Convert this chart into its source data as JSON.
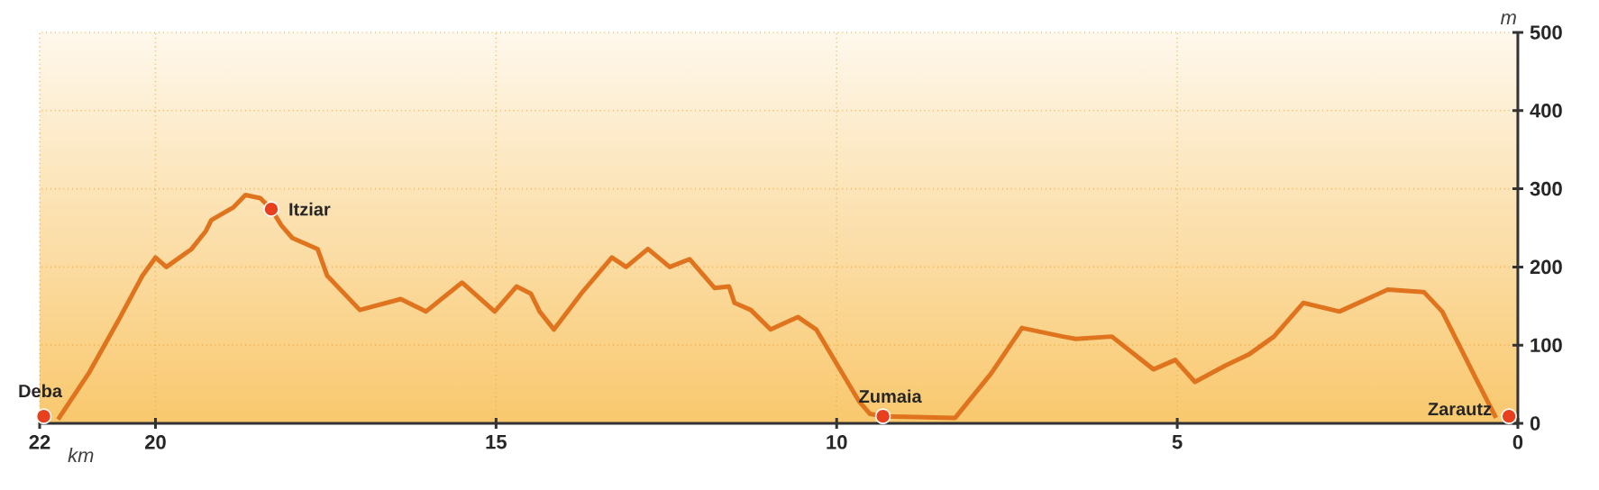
{
  "chart_data": {
    "type": "line",
    "xlabel": "km",
    "ylabel": "m",
    "x": [
      21.43,
      20.98,
      20.53,
      20.19,
      20.0,
      19.84,
      19.47,
      19.26,
      19.18,
      18.86,
      18.68,
      18.46,
      18.3,
      18.15,
      17.99,
      17.62,
      17.48,
      17.0,
      16.4,
      16.03,
      15.5,
      15.02,
      14.7,
      14.49,
      14.36,
      14.15,
      13.75,
      13.3,
      13.09,
      12.77,
      12.45,
      12.16,
      11.79,
      11.58,
      11.5,
      11.26,
      10.97,
      10.57,
      10.3,
      9.67,
      9.51,
      9.32,
      8.26,
      7.73,
      7.28,
      6.68,
      6.49,
      5.96,
      5.35,
      5.03,
      4.74,
      4.29,
      3.95,
      3.58,
      3.15,
      2.62,
      1.91,
      1.38,
      1.11,
      0.58,
      0.32
    ],
    "series": [
      {
        "type": "line",
        "color": "#e0741e",
        "values": [
          5,
          64,
          134,
          189,
          212,
          200,
          223,
          246,
          260,
          276,
          292,
          288,
          274,
          253,
          237,
          223,
          189,
          145,
          159,
          143,
          180,
          143,
          175,
          166,
          143,
          120,
          166,
          212,
          200,
          223,
          200,
          210,
          173,
          175,
          154,
          145,
          120,
          136,
          120,
          28,
          12,
          9,
          7,
          64,
          122,
          111,
          108,
          111,
          69,
          81,
          53,
          74,
          88,
          111,
          154,
          143,
          171,
          168,
          143,
          51,
          7
        ]
      },
      {
        "type": "scatter",
        "color": "#e8401c",
        "marker": "circle",
        "x": [
          21.64,
          18.3,
          9.32,
          0.13
        ],
        "values": [
          9,
          274,
          9,
          9
        ]
      }
    ],
    "annotations": [
      {
        "text": "Deba",
        "x": 21.64,
        "y": 9
      },
      {
        "text": "Itziar",
        "x": 18.3,
        "y": 274
      },
      {
        "text": "Zumaia",
        "x": 9.32,
        "y": 9
      },
      {
        "text": "Zarautz",
        "x": 0.13,
        "y": 9
      }
    ],
    "xlim": [
      21.7,
      0
    ],
    "xticks": [
      {
        "value": 21.7,
        "label": "22"
      },
      20,
      15,
      10,
      5,
      0
    ],
    "ylim": [
      0,
      500
    ],
    "yticks": [
      0,
      100,
      200,
      300,
      400,
      500
    ],
    "grid": true
  }
}
